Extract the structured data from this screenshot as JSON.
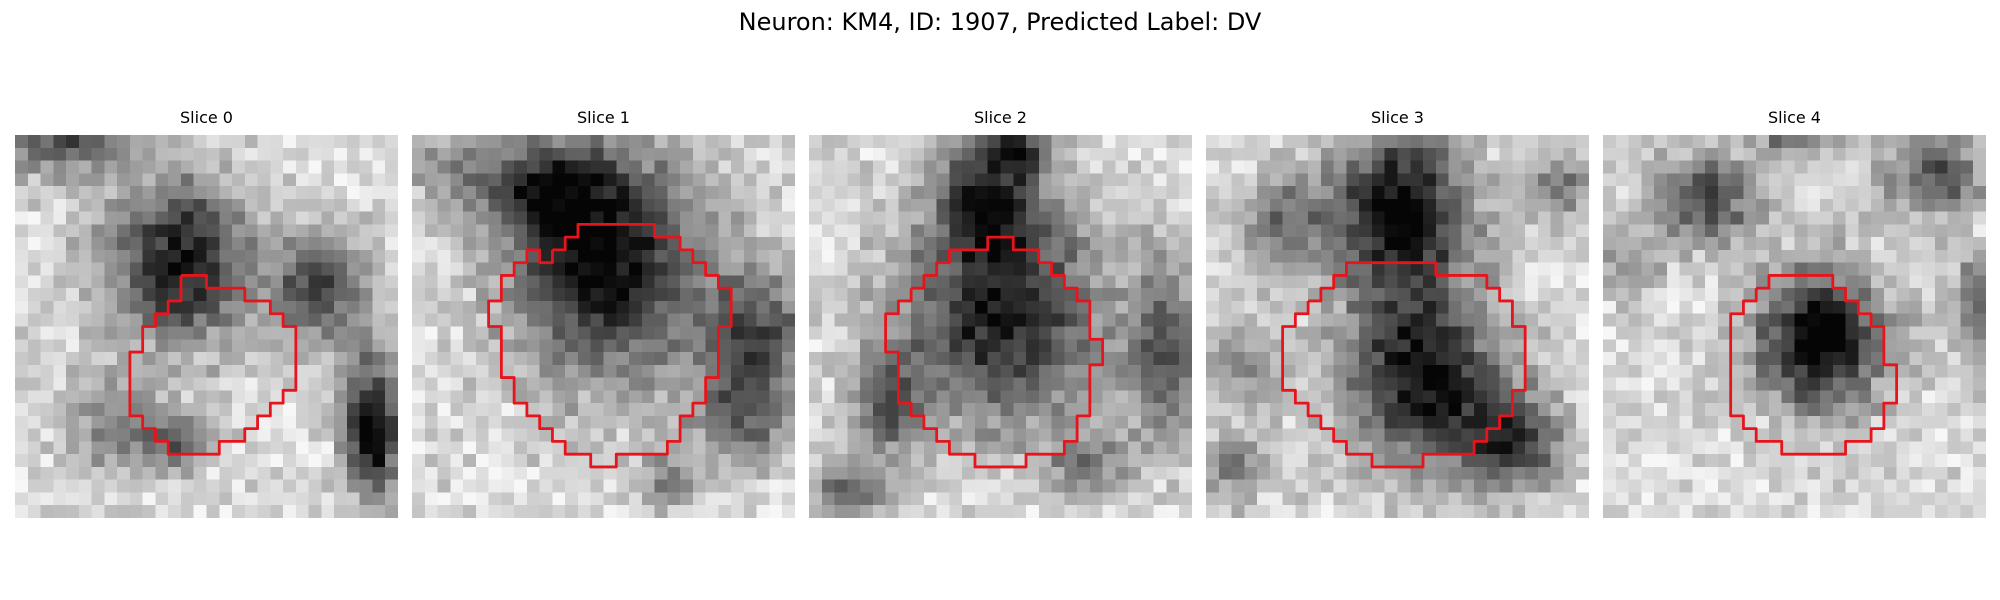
{
  "figure": {
    "title": "Neuron: KM4, ID: 1907, Predicted Label: DV"
  },
  "contour_color": "#e8141c",
  "panels": [
    {
      "label": "Slice 0",
      "seed": 11,
      "blobs": [
        [
          13,
          10,
          5.8,
          6.3,
          0.78
        ],
        [
          24,
          12,
          3.5,
          4.5,
          0.6
        ],
        [
          28,
          23,
          2.2,
          5.5,
          0.9
        ],
        [
          4,
          0,
          5,
          3,
          0.55
        ],
        [
          8,
          23,
          4,
          4,
          0.35
        ],
        [
          13,
          24,
          3,
          2,
          0.4
        ]
      ],
      "contour": [
        [
          13,
          11
        ],
        [
          14,
          11
        ],
        [
          15,
          11
        ],
        [
          15,
          12
        ],
        [
          16,
          12
        ],
        [
          17,
          12
        ],
        [
          18,
          12
        ],
        [
          18,
          13
        ],
        [
          19,
          13
        ],
        [
          20,
          13
        ],
        [
          20,
          14
        ],
        [
          21,
          14
        ],
        [
          21,
          15
        ],
        [
          22,
          15
        ],
        [
          22,
          16
        ],
        [
          22,
          17
        ],
        [
          22,
          18
        ],
        [
          22,
          19
        ],
        [
          22,
          20
        ],
        [
          21,
          20
        ],
        [
          21,
          21
        ],
        [
          20,
          21
        ],
        [
          20,
          22
        ],
        [
          19,
          22
        ],
        [
          19,
          23
        ],
        [
          18,
          23
        ],
        [
          18,
          24
        ],
        [
          17,
          24
        ],
        [
          16,
          24
        ],
        [
          16,
          25
        ],
        [
          15,
          25
        ],
        [
          14,
          25
        ],
        [
          13,
          25
        ],
        [
          12,
          25
        ],
        [
          12,
          24
        ],
        [
          11,
          24
        ],
        [
          11,
          23
        ],
        [
          10,
          23
        ],
        [
          10,
          22
        ],
        [
          9,
          22
        ],
        [
          9,
          21
        ],
        [
          9,
          20
        ],
        [
          9,
          19
        ],
        [
          9,
          18
        ],
        [
          9,
          17
        ],
        [
          10,
          17
        ],
        [
          10,
          16
        ],
        [
          10,
          15
        ],
        [
          11,
          15
        ],
        [
          11,
          14
        ],
        [
          12,
          14
        ],
        [
          12,
          13
        ],
        [
          13,
          13
        ],
        [
          13,
          12
        ],
        [
          13,
          11
        ]
      ]
    },
    {
      "label": "Slice 1",
      "seed": 23,
      "blobs": [
        [
          15,
          10,
          7.5,
          9,
          0.85
        ],
        [
          10,
          4,
          5,
          3.5,
          0.5
        ],
        [
          27,
          15,
          4,
          5,
          0.55
        ],
        [
          26,
          22,
          4,
          4,
          0.45
        ],
        [
          3,
          3,
          3,
          3,
          0.3
        ],
        [
          20,
          27,
          2,
          2,
          0.35
        ]
      ],
      "contour": [
        [
          11,
          9
        ],
        [
          12,
          9
        ],
        [
          12,
          8
        ],
        [
          13,
          8
        ],
        [
          13,
          7
        ],
        [
          14,
          7
        ],
        [
          15,
          7
        ],
        [
          16,
          7
        ],
        [
          17,
          7
        ],
        [
          18,
          7
        ],
        [
          19,
          7
        ],
        [
          19,
          8
        ],
        [
          20,
          8
        ],
        [
          21,
          8
        ],
        [
          21,
          9
        ],
        [
          22,
          9
        ],
        [
          22,
          10
        ],
        [
          23,
          10
        ],
        [
          23,
          11
        ],
        [
          24,
          11
        ],
        [
          24,
          12
        ],
        [
          25,
          12
        ],
        [
          25,
          13
        ],
        [
          25,
          14
        ],
        [
          25,
          15
        ],
        [
          24,
          15
        ],
        [
          24,
          16
        ],
        [
          24,
          17
        ],
        [
          24,
          18
        ],
        [
          24,
          19
        ],
        [
          23,
          19
        ],
        [
          23,
          20
        ],
        [
          23,
          21
        ],
        [
          22,
          21
        ],
        [
          22,
          22
        ],
        [
          21,
          22
        ],
        [
          21,
          23
        ],
        [
          21,
          24
        ],
        [
          20,
          24
        ],
        [
          20,
          25
        ],
        [
          19,
          25
        ],
        [
          18,
          25
        ],
        [
          17,
          25
        ],
        [
          16,
          25
        ],
        [
          16,
          26
        ],
        [
          15,
          26
        ],
        [
          14,
          26
        ],
        [
          14,
          25
        ],
        [
          13,
          25
        ],
        [
          12,
          25
        ],
        [
          12,
          24
        ],
        [
          11,
          24
        ],
        [
          11,
          23
        ],
        [
          10,
          23
        ],
        [
          10,
          22
        ],
        [
          9,
          22
        ],
        [
          9,
          21
        ],
        [
          8,
          21
        ],
        [
          8,
          20
        ],
        [
          8,
          19
        ],
        [
          7,
          19
        ],
        [
          7,
          18
        ],
        [
          7,
          17
        ],
        [
          7,
          16
        ],
        [
          7,
          15
        ],
        [
          6,
          15
        ],
        [
          6,
          14
        ],
        [
          6,
          13
        ],
        [
          7,
          13
        ],
        [
          7,
          12
        ],
        [
          7,
          11
        ],
        [
          8,
          11
        ],
        [
          8,
          10
        ],
        [
          9,
          10
        ],
        [
          9,
          9
        ],
        [
          10,
          9
        ],
        [
          10,
          10
        ],
        [
          11,
          10
        ],
        [
          11,
          9
        ]
      ]
    },
    {
      "label": "Slice 2",
      "seed": 37,
      "blobs": [
        [
          15,
          14,
          8,
          8.5,
          0.75
        ],
        [
          14,
          5,
          4,
          4,
          0.6
        ],
        [
          16,
          1,
          3,
          2,
          0.55
        ],
        [
          28,
          17,
          3,
          7,
          0.5
        ],
        [
          6,
          21,
          2.5,
          4,
          0.5
        ],
        [
          22,
          26,
          3,
          2.5,
          0.4
        ],
        [
          3,
          28,
          3,
          2,
          0.5
        ]
      ],
      "contour": [
        [
          8,
          12
        ],
        [
          9,
          12
        ],
        [
          9,
          11
        ],
        [
          10,
          11
        ],
        [
          10,
          10
        ],
        [
          11,
          10
        ],
        [
          11,
          9
        ],
        [
          12,
          9
        ],
        [
          13,
          9
        ],
        [
          14,
          9
        ],
        [
          14,
          8
        ],
        [
          15,
          8
        ],
        [
          16,
          8
        ],
        [
          16,
          9
        ],
        [
          17,
          9
        ],
        [
          18,
          9
        ],
        [
          18,
          10
        ],
        [
          19,
          10
        ],
        [
          19,
          11
        ],
        [
          20,
          11
        ],
        [
          20,
          12
        ],
        [
          21,
          12
        ],
        [
          21,
          13
        ],
        [
          22,
          13
        ],
        [
          22,
          14
        ],
        [
          22,
          15
        ],
        [
          22,
          16
        ],
        [
          23,
          16
        ],
        [
          23,
          17
        ],
        [
          23,
          18
        ],
        [
          22,
          18
        ],
        [
          22,
          19
        ],
        [
          22,
          20
        ],
        [
          22,
          21
        ],
        [
          22,
          22
        ],
        [
          21,
          22
        ],
        [
          21,
          23
        ],
        [
          21,
          24
        ],
        [
          20,
          24
        ],
        [
          20,
          25
        ],
        [
          19,
          25
        ],
        [
          18,
          25
        ],
        [
          17,
          25
        ],
        [
          17,
          26
        ],
        [
          16,
          26
        ],
        [
          15,
          26
        ],
        [
          14,
          26
        ],
        [
          13,
          26
        ],
        [
          13,
          25
        ],
        [
          12,
          25
        ],
        [
          11,
          25
        ],
        [
          11,
          24
        ],
        [
          10,
          24
        ],
        [
          10,
          23
        ],
        [
          9,
          23
        ],
        [
          9,
          22
        ],
        [
          8,
          22
        ],
        [
          8,
          21
        ],
        [
          7,
          21
        ],
        [
          7,
          20
        ],
        [
          7,
          19
        ],
        [
          7,
          18
        ],
        [
          7,
          17
        ],
        [
          6,
          17
        ],
        [
          6,
          16
        ],
        [
          6,
          15
        ],
        [
          6,
          14
        ],
        [
          7,
          14
        ],
        [
          7,
          13
        ],
        [
          8,
          13
        ],
        [
          8,
          12
        ]
      ]
    },
    {
      "label": "Slice 3",
      "seed": 51,
      "blobs": [
        [
          15,
          6,
          5.5,
          6.5,
          0.85
        ],
        [
          17,
          19,
          6,
          7,
          0.8
        ],
        [
          24,
          24,
          4,
          4,
          0.6
        ],
        [
          6,
          7,
          3,
          4,
          0.4
        ],
        [
          3,
          18,
          3,
          4,
          0.3
        ],
        [
          28,
          4,
          3,
          3,
          0.35
        ],
        [
          2,
          26,
          2.5,
          2.5,
          0.4
        ]
      ],
      "contour": [
        [
          8,
          13
        ],
        [
          9,
          13
        ],
        [
          9,
          12
        ],
        [
          10,
          12
        ],
        [
          10,
          11
        ],
        [
          11,
          11
        ],
        [
          11,
          10
        ],
        [
          12,
          10
        ],
        [
          13,
          10
        ],
        [
          14,
          10
        ],
        [
          15,
          10
        ],
        [
          16,
          10
        ],
        [
          17,
          10
        ],
        [
          18,
          10
        ],
        [
          18,
          11
        ],
        [
          19,
          11
        ],
        [
          20,
          11
        ],
        [
          21,
          11
        ],
        [
          22,
          11
        ],
        [
          22,
          12
        ],
        [
          23,
          12
        ],
        [
          23,
          13
        ],
        [
          24,
          13
        ],
        [
          24,
          14
        ],
        [
          24,
          15
        ],
        [
          25,
          15
        ],
        [
          25,
          16
        ],
        [
          25,
          17
        ],
        [
          25,
          18
        ],
        [
          25,
          19
        ],
        [
          25,
          20
        ],
        [
          24,
          20
        ],
        [
          24,
          21
        ],
        [
          24,
          22
        ],
        [
          23,
          22
        ],
        [
          23,
          23
        ],
        [
          22,
          23
        ],
        [
          22,
          24
        ],
        [
          21,
          24
        ],
        [
          21,
          25
        ],
        [
          20,
          25
        ],
        [
          19,
          25
        ],
        [
          18,
          25
        ],
        [
          17,
          25
        ],
        [
          17,
          26
        ],
        [
          16,
          26
        ],
        [
          15,
          26
        ],
        [
          14,
          26
        ],
        [
          13,
          26
        ],
        [
          13,
          25
        ],
        [
          12,
          25
        ],
        [
          11,
          25
        ],
        [
          11,
          24
        ],
        [
          10,
          24
        ],
        [
          10,
          23
        ],
        [
          9,
          23
        ],
        [
          9,
          22
        ],
        [
          8,
          22
        ],
        [
          8,
          21
        ],
        [
          7,
          21
        ],
        [
          7,
          20
        ],
        [
          6,
          20
        ],
        [
          6,
          19
        ],
        [
          6,
          18
        ],
        [
          6,
          17
        ],
        [
          6,
          16
        ],
        [
          6,
          15
        ],
        [
          7,
          15
        ],
        [
          7,
          14
        ],
        [
          8,
          14
        ],
        [
          8,
          13
        ]
      ]
    },
    {
      "label": "Slice 4",
      "seed": 67,
      "blobs": [
        [
          17,
          16,
          5,
          5.5,
          0.9
        ],
        [
          8,
          5,
          4,
          3.5,
          0.6
        ],
        [
          26,
          3,
          4,
          3,
          0.55
        ],
        [
          15,
          0,
          3,
          2,
          0.45
        ],
        [
          29,
          13,
          2,
          4,
          0.4
        ],
        [
          2,
          10,
          2.5,
          3,
          0.3
        ]
      ],
      "contour": [
        [
          12,
          12
        ],
        [
          13,
          12
        ],
        [
          13,
          11
        ],
        [
          14,
          11
        ],
        [
          15,
          11
        ],
        [
          16,
          11
        ],
        [
          17,
          11
        ],
        [
          18,
          11
        ],
        [
          18,
          12
        ],
        [
          19,
          12
        ],
        [
          19,
          13
        ],
        [
          20,
          13
        ],
        [
          20,
          14
        ],
        [
          21,
          14
        ],
        [
          21,
          15
        ],
        [
          22,
          15
        ],
        [
          22,
          16
        ],
        [
          22,
          17
        ],
        [
          22,
          18
        ],
        [
          23,
          18
        ],
        [
          23,
          19
        ],
        [
          23,
          20
        ],
        [
          23,
          21
        ],
        [
          22,
          21
        ],
        [
          22,
          22
        ],
        [
          22,
          23
        ],
        [
          21,
          23
        ],
        [
          21,
          24
        ],
        [
          20,
          24
        ],
        [
          19,
          24
        ],
        [
          19,
          25
        ],
        [
          18,
          25
        ],
        [
          17,
          25
        ],
        [
          16,
          25
        ],
        [
          15,
          25
        ],
        [
          14,
          25
        ],
        [
          14,
          24
        ],
        [
          13,
          24
        ],
        [
          12,
          24
        ],
        [
          12,
          23
        ],
        [
          11,
          23
        ],
        [
          11,
          22
        ],
        [
          10,
          22
        ],
        [
          10,
          21
        ],
        [
          10,
          20
        ],
        [
          10,
          19
        ],
        [
          10,
          18
        ],
        [
          10,
          17
        ],
        [
          10,
          16
        ],
        [
          10,
          15
        ],
        [
          10,
          14
        ],
        [
          11,
          14
        ],
        [
          11,
          13
        ],
        [
          12,
          13
        ],
        [
          12,
          12
        ]
      ]
    }
  ]
}
